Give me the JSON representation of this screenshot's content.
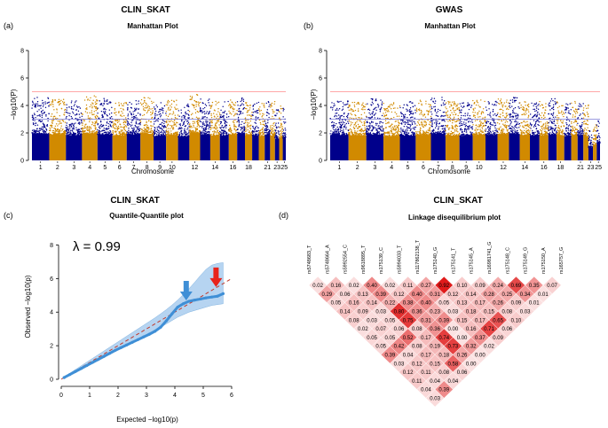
{
  "colors": {
    "chrom_odd": "#00008b",
    "chrom_even": "#d18a00",
    "threshold_high": "#ff8a8a",
    "threshold_low": "#7b7bd6",
    "qq_points": "#3f8fd6",
    "qq_band": "#a9cdee",
    "qq_line": "#c0392b",
    "arrow_blue": "#3f8fd6",
    "arrow_red": "#e8221a",
    "ld_high": "#e01a1a",
    "ld_low": "#fbe2e2"
  },
  "chart_data": [
    {
      "id": "a",
      "panel_label": "(a)",
      "header": "CLIN_SKAT",
      "type": "scatter",
      "title": "Manhattan Plot",
      "xlabel": "Chromosome",
      "ylabel": "−log10(P)",
      "ylim": [
        0,
        8
      ],
      "yticks": [
        0,
        2,
        4,
        6,
        8
      ],
      "chromosome_labels": [
        "1",
        "2",
        "3",
        "4",
        "5",
        "6",
        "7",
        "8",
        "9",
        "10",
        "12",
        "14",
        "16",
        "18",
        "21",
        "23",
        "25"
      ],
      "chromosome_count": 25,
      "thresholds": [
        5,
        3
      ],
      "peaks": [
        4.6,
        4.5,
        4.4,
        4.7,
        4.5,
        4.3,
        4.5,
        4.6,
        4.2,
        4.4,
        4.1,
        4.8,
        4.5,
        4.3,
        4.3,
        4.4,
        4.6,
        4.4,
        4.3,
        4.2,
        4.5,
        4.3,
        3.8,
        4.0,
        3.9
      ]
    },
    {
      "id": "b",
      "panel_label": "(b)",
      "header": "GWAS",
      "type": "scatter",
      "title": "Manhattan Plot",
      "xlabel": "Chromosome",
      "ylabel": "−log10(P)",
      "ylim": [
        0,
        8
      ],
      "yticks": [
        0,
        2,
        4,
        6,
        8
      ],
      "chromosome_labels": [
        "1",
        "2",
        "3",
        "4",
        "5",
        "6",
        "7",
        "8",
        "9",
        "10",
        "12",
        "14",
        "16",
        "18",
        "21",
        "23",
        "25"
      ],
      "chromosome_count": 25,
      "thresholds": [
        5,
        3
      ],
      "peaks": [
        4.4,
        4.3,
        4.5,
        4.2,
        4.3,
        4.4,
        4.6,
        4.3,
        4.2,
        4.4,
        4.3,
        4.5,
        4.6,
        4.4,
        4.3,
        4.3,
        4.5,
        4.3,
        4.2,
        4.4,
        4.3,
        4.2,
        2.2,
        2.6,
        3.0
      ]
    },
    {
      "id": "c",
      "panel_label": "(c)",
      "header": "CLIN_SKAT",
      "type": "scatter",
      "title": "Quantile-Quantile plot",
      "xlabel": "Expected  −log10(p)",
      "ylabel": "Observed  −log10(p)",
      "lambda_text": "λ = 0.99",
      "xlim": [
        0,
        6
      ],
      "ylim": [
        0,
        8.5
      ],
      "xticks": [
        0,
        1,
        2,
        3,
        4,
        5,
        6
      ],
      "yticks": [
        0,
        2,
        4,
        6,
        8
      ],
      "expected": [
        0.1,
        0.3,
        0.5,
        0.7,
        0.9,
        1.1,
        1.3,
        1.5,
        1.7,
        1.9,
        2.1,
        2.3,
        2.5,
        2.7,
        2.9,
        3.1,
        3.3,
        3.5,
        3.7,
        3.9,
        4.1,
        4.3,
        4.5,
        4.7,
        4.9,
        5.1,
        5.3,
        5.5,
        5.7
      ],
      "observed": [
        0.1,
        0.28,
        0.46,
        0.64,
        0.82,
        1.0,
        1.18,
        1.36,
        1.54,
        1.72,
        1.88,
        2.04,
        2.2,
        2.36,
        2.52,
        2.68,
        2.86,
        3.1,
        3.48,
        3.9,
        4.3,
        4.5,
        4.65,
        4.72,
        4.78,
        4.85,
        4.9,
        4.95,
        5.1
      ],
      "band_lower": [
        0.06,
        0.24,
        0.42,
        0.6,
        0.78,
        0.96,
        1.14,
        1.32,
        1.5,
        1.68,
        1.86,
        2.04,
        2.22,
        2.4,
        2.58,
        2.76,
        2.94,
        3.1,
        3.3,
        3.5,
        3.7,
        3.85,
        4.0,
        4.1,
        4.2,
        4.3,
        4.4,
        4.45,
        4.5
      ],
      "band_upper": [
        0.14,
        0.36,
        0.58,
        0.8,
        1.02,
        1.24,
        1.46,
        1.68,
        1.9,
        2.12,
        2.34,
        2.56,
        2.78,
        3.0,
        3.22,
        3.44,
        3.66,
        3.9,
        4.15,
        4.42,
        4.72,
        5.05,
        5.4,
        5.78,
        6.18,
        6.55,
        6.8,
        6.9,
        6.95
      ],
      "reference_line": [
        [
          0,
          0
        ],
        [
          6,
          6
        ]
      ],
      "arrows": [
        {
          "color": "blue",
          "x": 4.4,
          "y": 4.7
        },
        {
          "color": "red",
          "x": 5.45,
          "y": 5.5
        }
      ]
    },
    {
      "id": "d",
      "panel_label": "(d)",
      "header": "CLIN_SKAT",
      "type": "heatmap",
      "title": "Linkage disequilibrium plot",
      "snps": [
        "rs5748683_T",
        "rs5748664_A",
        "rs5992554_C",
        "rs9618895_T",
        "rs175139_C",
        "rs5994033_T",
        "rs117862138_T",
        "rs175140_G",
        "rs175141_T",
        "rs175145_A",
        "rs16981741_G",
        "rs175148_C",
        "rs175149_G",
        "rs175150_A",
        "rs165757_G"
      ],
      "ld_rows": [
        [
          "0.02",
          "0.16",
          "0.02",
          "0.40",
          "0.02",
          "0.11",
          "0.27",
          "0.92",
          "0.10",
          "0.09",
          "0.24",
          "0.69",
          "0.35",
          "0.07"
        ],
        [
          "0.29",
          "0.06",
          "0.13",
          "0.39",
          "0.12",
          "0.40",
          "0.31",
          "0.12",
          "0.14",
          "0.28",
          "0.25",
          "0.34",
          "0.01"
        ],
        [
          "0.05",
          "0.16",
          "0.14",
          "0.22",
          "0.38",
          "0.40",
          "0.05",
          "0.13",
          "0.17",
          "0.26",
          "0.09",
          "0.01"
        ],
        [
          "0.14",
          "0.09",
          "0.03",
          "0.80",
          "0.36",
          "0.23",
          "0.03",
          "0.18",
          "0.15",
          "0.08",
          "0.03"
        ],
        [
          "0.08",
          "0.03",
          "0.05",
          "0.75",
          "0.31",
          "0.39",
          "0.15",
          "0.17",
          "0.65",
          "0.10"
        ],
        [
          "0.02",
          "0.07",
          "0.06",
          "0.08",
          "0.36",
          "0.00",
          "0.16",
          "0.71",
          "0.06"
        ],
        [
          "0.05",
          "0.05",
          "0.52",
          "0.17",
          "0.74",
          "0.00",
          "0.37",
          "0.09"
        ],
        [
          "0.05",
          "0.42",
          "0.08",
          "0.19",
          "0.73",
          "0.32",
          "0.02"
        ],
        [
          "0.39",
          "0.04",
          "0.17",
          "0.18",
          "0.26",
          "0.00"
        ],
        [
          "0.03",
          "0.12",
          "0.15",
          "0.58",
          "0.00"
        ],
        [
          "0.12",
          "0.11",
          "0.08",
          "0.06"
        ],
        [
          "0.11",
          "0.04",
          "0.04"
        ],
        [
          "0.04",
          "0.39"
        ],
        [
          "0.03"
        ]
      ]
    }
  ]
}
